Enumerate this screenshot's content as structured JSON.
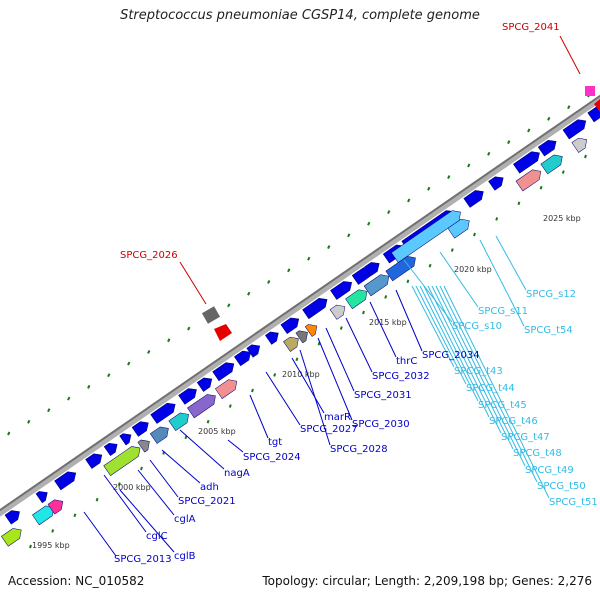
{
  "title": "Streptococcus pneumoniae CGSP14, complete genome",
  "footer": {
    "accession": "Accession: NC_010582",
    "summary": "Topology: circular; Length: 2,209,198 bp; Genes: 2,276"
  },
  "colors": {
    "backbone": "#8c8c8c",
    "gene": "#0000e6",
    "label_blue": "#0000cc",
    "label_cyan": "#33bbe6",
    "label_red": "#cc0000",
    "gc_tick": "#1a7a1a"
  },
  "kbp_labels": [
    "1995 kbp",
    "2000 kbp",
    "2005 kbp",
    "2010 kbp",
    "2015 kbp",
    "2020 kbp",
    "2025 kbp"
  ],
  "gene_labels_blue": [
    "SPCG_2013",
    "cglB",
    "cglC",
    "cglA",
    "SPCG_2021",
    "adh",
    "nagA",
    "SPCG_2024",
    "tgt",
    "SPCG_2027",
    "marR",
    "SPCG_2028",
    "SPCG_2030",
    "SPCG_2031",
    "SPCG_2032",
    "thrC",
    "SPCG_2034"
  ],
  "gene_labels_cyan": [
    "SPCG_s10",
    "SPCG_s11",
    "SPCG_s12",
    "SPCG_t54",
    "SPCG_t43",
    "SPCG_t44",
    "SPCG_t45",
    "SPCG_t46",
    "SPCG_t47",
    "SPCG_t48",
    "SPCG_t49",
    "SPCG_t50",
    "SPCG_t51"
  ],
  "gene_labels_red": [
    "SPCG_2026",
    "SPCG_2041"
  ]
}
